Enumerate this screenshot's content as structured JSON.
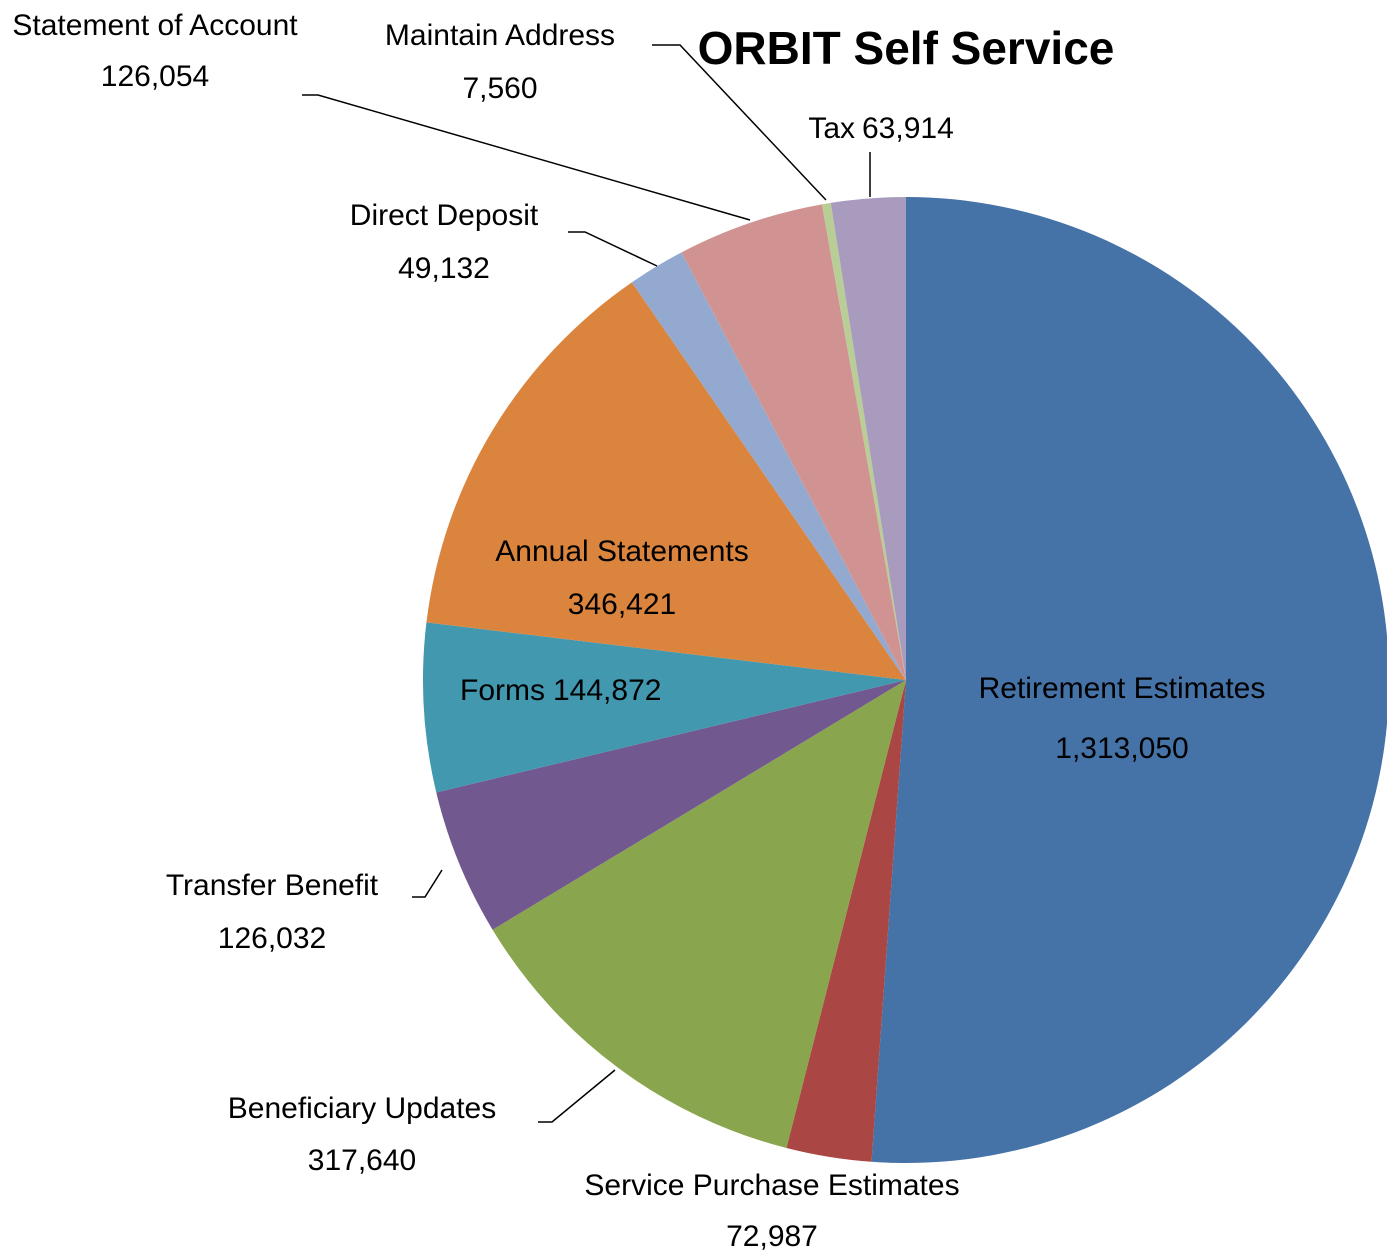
{
  "chart_data": {
    "type": "pie",
    "title": "ORBIT Self Service",
    "categories": [
      "Retirement Estimates",
      "Service Purchase Estimates",
      "Beneficiary Updates",
      "Transfer Benefit",
      "Forms",
      "Annual Statements",
      "Direct Deposit",
      "Statement of Account",
      "Maintain Address",
      "Tax"
    ],
    "values": [
      1313050,
      72987,
      317640,
      126032,
      144872,
      346421,
      49132,
      126054,
      7560,
      63914
    ],
    "value_labels": [
      "1,313,050",
      "72,987",
      "317,640",
      "126,032",
      "144,872",
      "346,421",
      "49,132",
      "126,054",
      "7,560",
      "63,914"
    ],
    "colors": [
      "#4572a7",
      "#aa4643",
      "#89a54e",
      "#71588f",
      "#4198af",
      "#db843d",
      "#93a9cf",
      "#d19392",
      "#b9cd96",
      "#a99bbd"
    ]
  }
}
